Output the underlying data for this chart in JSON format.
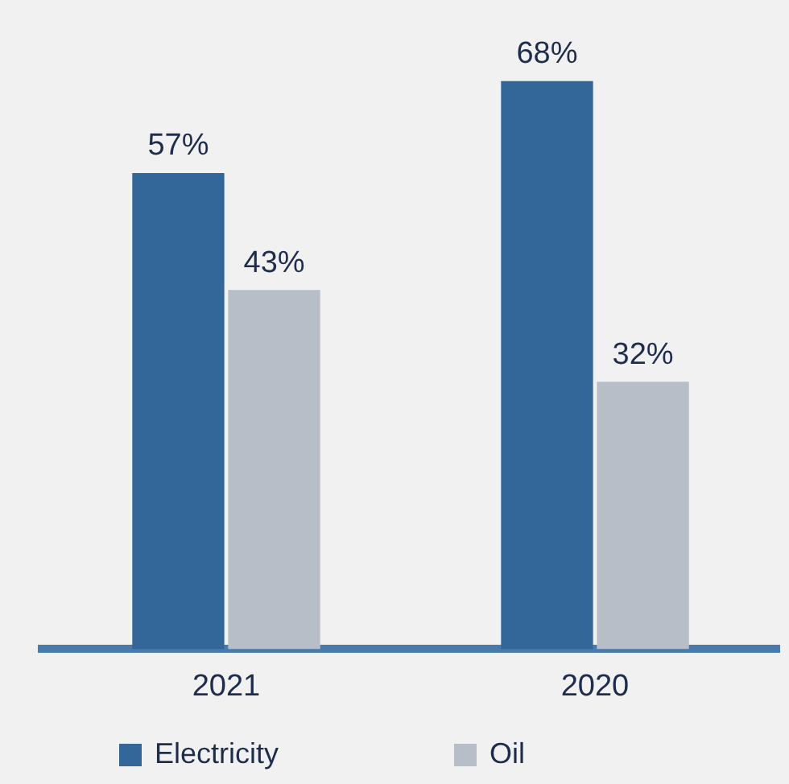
{
  "chart_data": {
    "type": "bar",
    "categories": [
      "2021",
      "2020"
    ],
    "series": [
      {
        "name": "Electricity",
        "color": "#336699",
        "values": [
          57,
          68
        ],
        "value_labels": [
          "57%",
          "68%"
        ]
      },
      {
        "name": "Oil",
        "color": "#b8bec8",
        "values": [
          43,
          32
        ],
        "value_labels": [
          "43%",
          "32%"
        ]
      }
    ],
    "legend": "bottom",
    "grid": false
  }
}
